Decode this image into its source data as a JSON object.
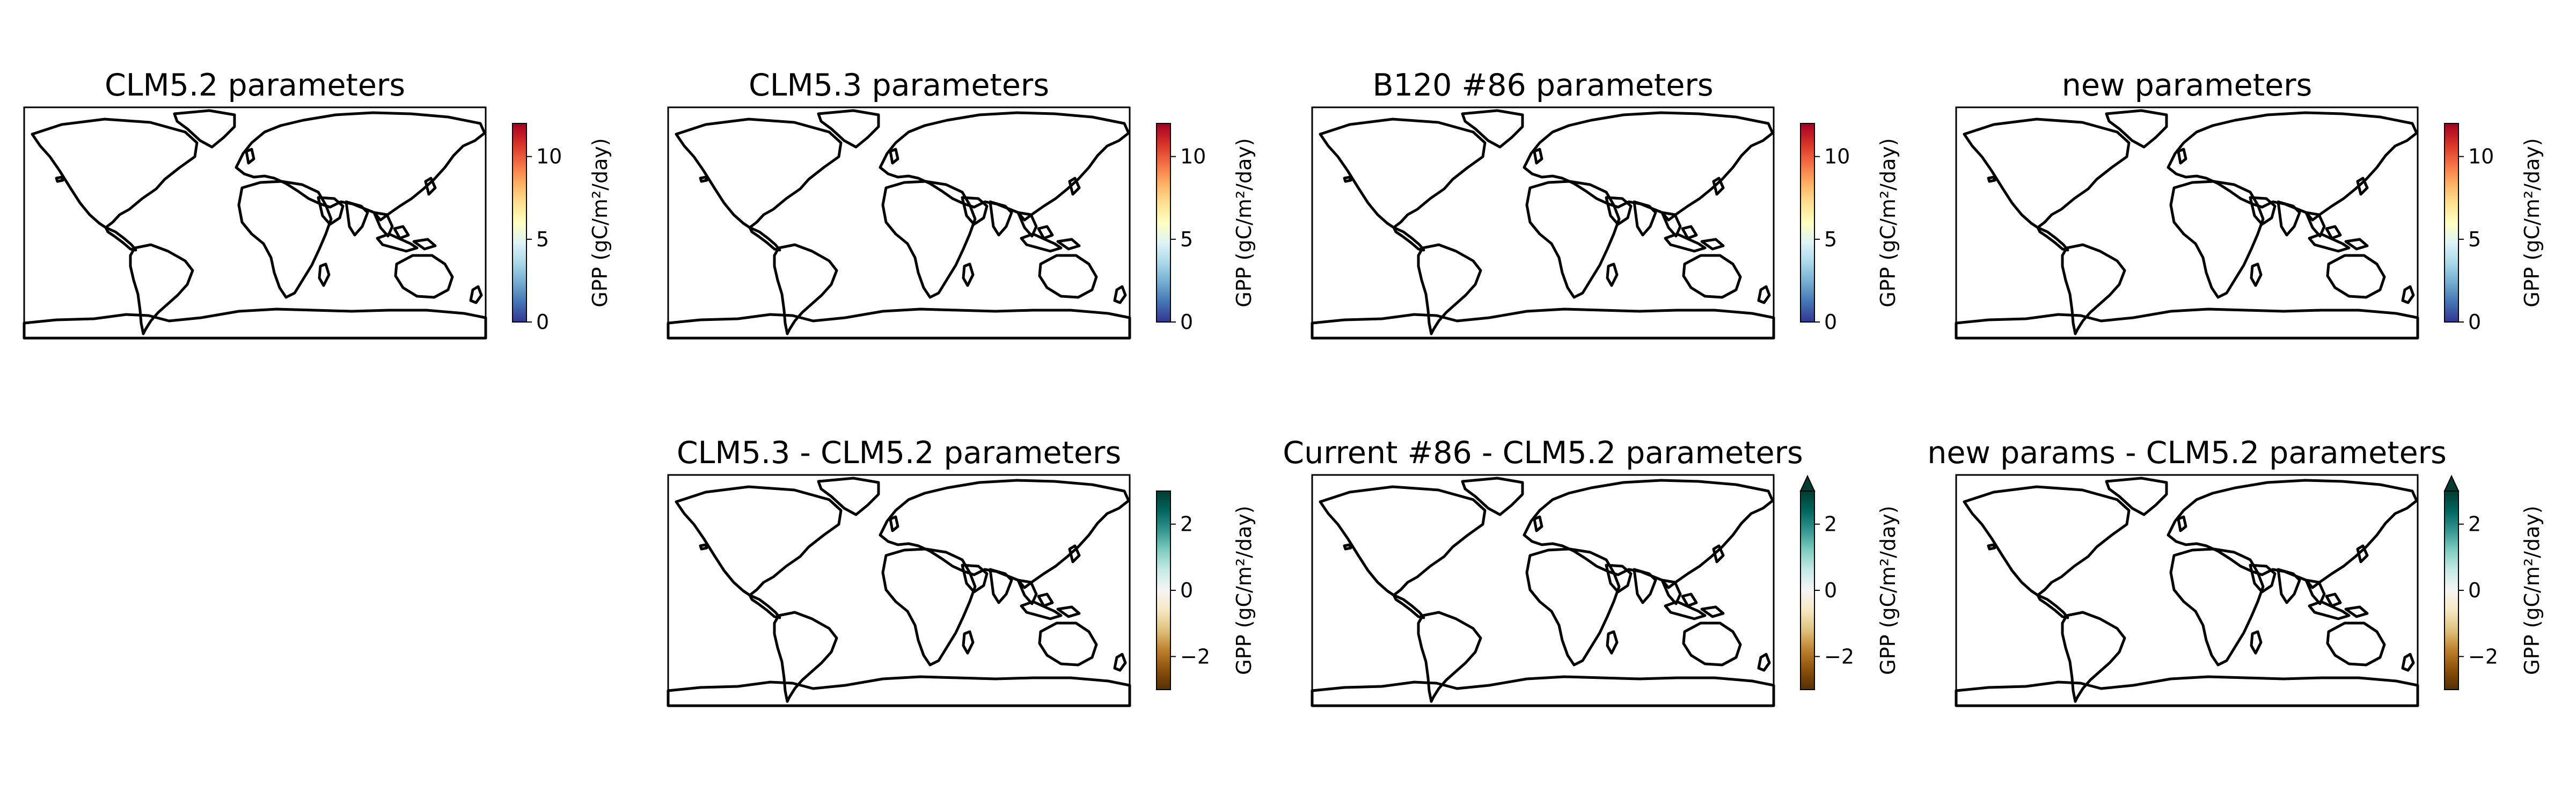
{
  "colorbar_label": "GPP (gC/m²/day)",
  "colormaps": {
    "absolute": [
      "#313695",
      "#4575b4",
      "#74add1",
      "#abd9e9",
      "#e0f3f8",
      "#ffffbf",
      "#fee090",
      "#fdae61",
      "#f46d43",
      "#d73027",
      "#a50026"
    ],
    "difference": [
      "#543005",
      "#8c510a",
      "#bf812d",
      "#dfc27d",
      "#f6e8c3",
      "#f5f5f5",
      "#c7eae5",
      "#80cdc1",
      "#35978f",
      "#01665e",
      "#003c30"
    ]
  },
  "colors": {
    "ocean": "#ffffff",
    "coastline": "#000000"
  },
  "panels": [
    {
      "title": "CLM5.2 parameters",
      "kind": "absolute",
      "ticks": [
        "0",
        "5",
        "10"
      ],
      "tick_values": [
        0,
        5,
        10
      ],
      "range": [
        0,
        12
      ],
      "extend": "neither"
    },
    {
      "title": "CLM5.3 parameters",
      "kind": "absolute",
      "ticks": [
        "0",
        "5",
        "10"
      ],
      "tick_values": [
        0,
        5,
        10
      ],
      "range": [
        0,
        12
      ],
      "extend": "neither"
    },
    {
      "title": "B120 #86 parameters",
      "kind": "absolute",
      "ticks": [
        "0",
        "5",
        "10"
      ],
      "tick_values": [
        0,
        5,
        10
      ],
      "range": [
        0,
        12
      ],
      "extend": "neither"
    },
    {
      "title": "new parameters",
      "kind": "absolute",
      "ticks": [
        "0",
        "5",
        "10"
      ],
      "tick_values": [
        0,
        5,
        10
      ],
      "range": [
        0,
        12
      ],
      "extend": "neither"
    },
    {
      "title": "CLM5.3 - CLM5.2 parameters",
      "kind": "difference",
      "ticks": [
        "−2",
        "0",
        "2"
      ],
      "tick_values": [
        -2,
        0,
        2
      ],
      "range": [
        -3,
        3
      ],
      "extend": "neither"
    },
    {
      "title": "Current #86 - CLM5.2 parameters",
      "kind": "difference",
      "ticks": [
        "−2",
        "0",
        "2"
      ],
      "tick_values": [
        -2,
        0,
        2
      ],
      "range": [
        -3,
        3
      ],
      "extend": "max"
    },
    {
      "title": "new params - CLM5.2 parameters",
      "kind": "difference",
      "ticks": [
        "−2",
        "0",
        "2"
      ],
      "tick_values": [
        -2,
        0,
        2
      ],
      "range": [
        -3,
        3
      ],
      "extend": "max"
    }
  ]
}
